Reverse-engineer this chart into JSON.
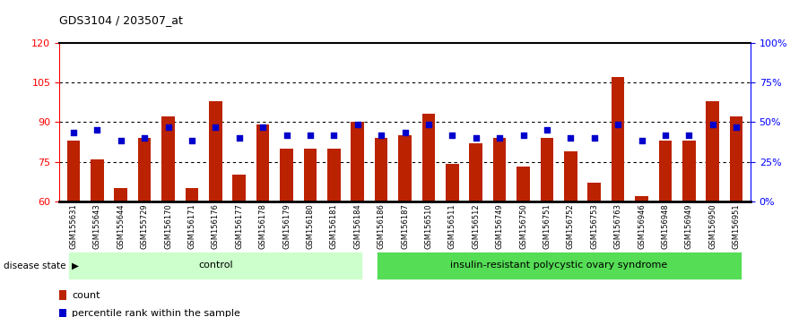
{
  "title": "GDS3104 / 203507_at",
  "samples": [
    "GSM155631",
    "GSM155643",
    "GSM155644",
    "GSM155729",
    "GSM156170",
    "GSM156171",
    "GSM156176",
    "GSM156177",
    "GSM156178",
    "GSM156179",
    "GSM156180",
    "GSM156181",
    "GSM156184",
    "GSM156186",
    "GSM156187",
    "GSM156510",
    "GSM156511",
    "GSM156512",
    "GSM156749",
    "GSM156750",
    "GSM156751",
    "GSM156752",
    "GSM156753",
    "GSM156763",
    "GSM156946",
    "GSM156948",
    "GSM156949",
    "GSM156950",
    "GSM156951"
  ],
  "red_values": [
    83,
    76,
    65,
    84,
    92,
    65,
    98,
    70,
    89,
    80,
    80,
    80,
    90,
    84,
    85,
    93,
    74,
    82,
    84,
    73,
    84,
    79,
    67,
    107,
    62,
    83,
    83,
    98,
    92
  ],
  "blue_values_left_scale": [
    86,
    87,
    83,
    84,
    88,
    83,
    88,
    84,
    88,
    85,
    85,
    85,
    89,
    85,
    86,
    89,
    85,
    84,
    84,
    85,
    87,
    84,
    84,
    89,
    83,
    85,
    85,
    89,
    88
  ],
  "group1_count": 13,
  "group2_count": 16,
  "group1_label": "control",
  "group2_label": "insulin-resistant polycystic ovary syndrome",
  "ylim_left": [
    60,
    120
  ],
  "ylim_right": [
    0,
    100
  ],
  "yticks_left": [
    60,
    75,
    90,
    105,
    120
  ],
  "ytick_labels_left": [
    "60",
    "75",
    "90",
    "105",
    "120"
  ],
  "yticks_right_pct": [
    0,
    25,
    50,
    75,
    100
  ],
  "ytick_labels_right": [
    "0%",
    "25%",
    "50%",
    "75%",
    "100%"
  ],
  "dotted_lines": [
    75,
    90,
    105
  ],
  "bar_color": "#bb2200",
  "square_color": "#0000cc",
  "group1_bg": "#ccffcc",
  "group2_bg": "#55dd55",
  "tick_bg": "#cccccc",
  "legend_count_label": "count",
  "legend_pct_label": "percentile rank within the sample"
}
